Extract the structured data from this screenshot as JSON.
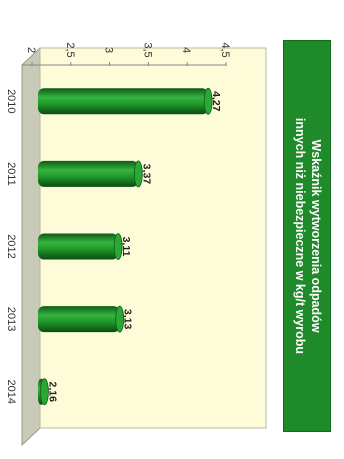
{
  "title": {
    "line1": "Wskaźnik wytworzenia odpadów",
    "line2": "innych niż niebezpieczne w kg/t wyrobu"
  },
  "chart_data": {
    "type": "bar",
    "orientation": "horizontal",
    "title": "Wskaźnik wytworzenia odpadów innych niż niebezpieczne w kg/t wyrobu",
    "categories": [
      "2010",
      "2011",
      "2012",
      "2013",
      "2014"
    ],
    "values": [
      4.27,
      3.37,
      3.11,
      3.13,
      2.16
    ],
    "value_labels": [
      "4,27",
      "3,37",
      "3,11",
      "3,13",
      "2,16"
    ],
    "value_axis": {
      "range": [
        2,
        4.5
      ],
      "ticks": [
        2,
        2.5,
        3,
        3.5,
        4,
        4.5
      ],
      "tick_labels": [
        "2",
        "2,5",
        "3",
        "3,5",
        "4",
        "4,5"
      ]
    },
    "bar_color": "#1f9a2a",
    "plot_background": "#fdfbd8",
    "grid": false,
    "legend": "none"
  }
}
